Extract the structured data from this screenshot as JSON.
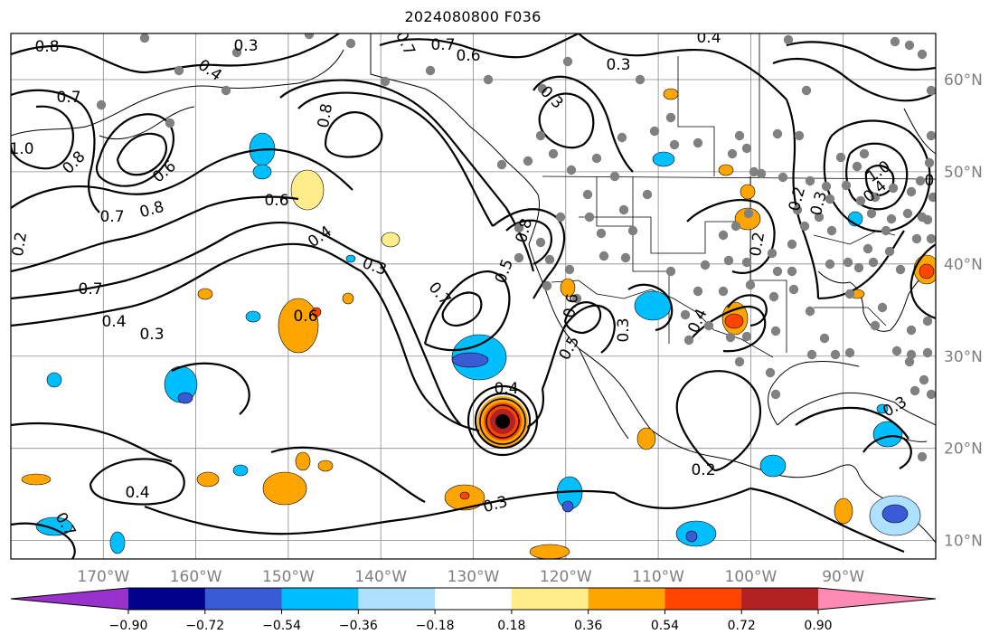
{
  "title": "2024080800 F036",
  "map": {
    "projection": "equirectangular",
    "lon_range": [
      -180,
      -80
    ],
    "lat_range": [
      8,
      65
    ],
    "lat_labels": [
      "60°N",
      "50°N",
      "40°N",
      "30°N",
      "20°N",
      "10°N"
    ],
    "lon_labels": [
      "170°W",
      "160°W",
      "150°W",
      "140°W",
      "130°W",
      "120°W",
      "110°W",
      "100°W",
      "90°W"
    ],
    "gridline_color": "#8a8a8a",
    "contour_labels": [
      "0.8",
      "0.3",
      "0.3",
      "0.8",
      "0.6",
      "0.4",
      "0.7",
      "0.7",
      "0.4",
      "1.0",
      "0.8",
      "0.6",
      "0.7",
      "0.8",
      "0.6",
      "0.4",
      "0.3",
      "0.7",
      "0.5",
      "0.6",
      "0.8",
      "0.7",
      "0.7",
      "0.6",
      "0.5",
      "0.3",
      "0.4",
      "0.2",
      "0.4",
      "0.3",
      "0.4",
      "0.3",
      "0.2",
      "0.2",
      "0.3",
      "0.2",
      "0.4",
      "0.3",
      "1.0",
      "0.8",
      "0.7",
      "0.4",
      "0.3"
    ],
    "station_color": "#808080",
    "storm": {
      "label": "0.4",
      "lon": -127.3,
      "lat": 22.8
    }
  },
  "colorbar": {
    "colors": [
      "#9932cc",
      "#00008b",
      "#3a5bd6",
      "#00bfff",
      "#aee0ff",
      "#ffffff",
      "#ffec8b",
      "#ffa500",
      "#ff4500",
      "#b22222",
      "#ff89b5"
    ],
    "tick_labels": [
      "−0.90",
      "−0.72",
      "−0.54",
      "−0.36",
      "−0.18",
      "0.18",
      "0.36",
      "0.54",
      "0.72",
      "0.90"
    ]
  }
}
